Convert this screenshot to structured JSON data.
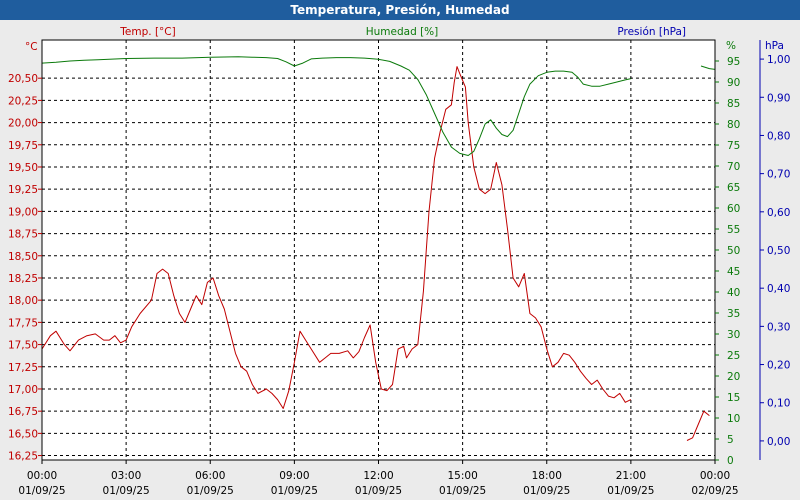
{
  "window": {
    "title": "Temperatura, Presión, Humedad"
  },
  "colors": {
    "temp": "#c00000",
    "humidity": "#0b7a0b",
    "pressure": "#0000b0",
    "grid": "#000000",
    "plot_bg": "#ffffff",
    "frame_bg": "#ebebeb",
    "title_bg": "#1f5d9e"
  },
  "chart_data": {
    "type": "line",
    "title": "Temperatura, Presión, Humedad",
    "grid": true,
    "x_tick_labels": [
      [
        "00:00",
        "01/09/25"
      ],
      [
        "03:00",
        "01/09/25"
      ],
      [
        "06:00",
        "01/09/25"
      ],
      [
        "09:00",
        "01/09/25"
      ],
      [
        "12:00",
        "01/09/25"
      ],
      [
        "15:00",
        "01/09/25"
      ],
      [
        "18:00",
        "01/09/25"
      ],
      [
        "21:00",
        "01/09/25"
      ],
      [
        "00:00",
        "02/09/25"
      ]
    ],
    "xlim": [
      0,
      24
    ],
    "axes": {
      "temp": {
        "label": "Temp. [°C]",
        "unit": "°C",
        "range": [
          16.2,
          20.93
        ],
        "ticks": [
          "16,25",
          "16,50",
          "16,75",
          "17,00",
          "17,25",
          "17,50",
          "17,75",
          "18,00",
          "18,25",
          "18,50",
          "18,75",
          "19,00",
          "19,25",
          "19,50",
          "19,75",
          "20,00",
          "20,25",
          "20,50"
        ]
      },
      "humidity": {
        "label": "Humedad [%]",
        "unit": "%",
        "range": [
          0,
          100
        ],
        "ticks": [
          "0",
          "5",
          "10",
          "15",
          "20",
          "25",
          "30",
          "35",
          "40",
          "45",
          "50",
          "55",
          "60",
          "65",
          "70",
          "75",
          "80",
          "85",
          "90",
          "95"
        ]
      },
      "pressure": {
        "label": "Presión [hPa]",
        "unit": "hPa",
        "range": [
          -0.05,
          1.05
        ],
        "ticks": [
          "0,00",
          "0,10",
          "0,20",
          "0,30",
          "0,40",
          "0,50",
          "0,60",
          "0,70",
          "0,80",
          "0,90",
          "1,00"
        ]
      }
    },
    "series": [
      {
        "name": "Temp. [°C]",
        "axis": "temp",
        "segments": [
          [
            [
              0,
              17.45
            ],
            [
              0.3,
              17.6
            ],
            [
              0.5,
              17.65
            ],
            [
              0.8,
              17.5
            ],
            [
              1.0,
              17.43
            ],
            [
              1.3,
              17.55
            ],
            [
              1.6,
              17.6
            ],
            [
              1.9,
              17.62
            ],
            [
              2.2,
              17.55
            ],
            [
              2.4,
              17.55
            ],
            [
              2.6,
              17.6
            ],
            [
              2.8,
              17.52
            ],
            [
              3.0,
              17.55
            ],
            [
              3.2,
              17.7
            ],
            [
              3.5,
              17.85
            ],
            [
              3.9,
              18.0
            ],
            [
              4.1,
              18.3
            ],
            [
              4.3,
              18.35
            ],
            [
              4.5,
              18.3
            ],
            [
              4.7,
              18.05
            ],
            [
              4.9,
              17.85
            ],
            [
              5.1,
              17.75
            ],
            [
              5.3,
              17.9
            ],
            [
              5.5,
              18.05
            ],
            [
              5.7,
              17.95
            ],
            [
              5.9,
              18.2
            ],
            [
              6.1,
              18.25
            ],
            [
              6.3,
              18.05
            ],
            [
              6.5,
              17.9
            ],
            [
              6.7,
              17.65
            ],
            [
              6.9,
              17.4
            ],
            [
              7.1,
              17.25
            ],
            [
              7.3,
              17.2
            ],
            [
              7.5,
              17.05
            ],
            [
              7.7,
              16.95
            ],
            [
              8.0,
              17.0
            ],
            [
              8.2,
              16.95
            ],
            [
              8.4,
              16.88
            ],
            [
              8.6,
              16.78
            ],
            [
              8.8,
              16.98
            ],
            [
              9.0,
              17.3
            ],
            [
              9.2,
              17.65
            ],
            [
              9.4,
              17.55
            ],
            [
              9.6,
              17.45
            ],
            [
              9.9,
              17.3
            ],
            [
              10.1,
              17.35
            ],
            [
              10.3,
              17.4
            ],
            [
              10.6,
              17.4
            ],
            [
              10.9,
              17.43
            ],
            [
              11.1,
              17.35
            ],
            [
              11.3,
              17.42
            ],
            [
              11.5,
              17.58
            ],
            [
              11.7,
              17.72
            ],
            [
              11.9,
              17.3
            ],
            [
              12.1,
              17.0
            ],
            [
              12.3,
              16.98
            ],
            [
              12.5,
              17.05
            ],
            [
              12.7,
              17.45
            ],
            [
              12.9,
              17.48
            ],
            [
              13.0,
              17.35
            ],
            [
              13.2,
              17.45
            ],
            [
              13.4,
              17.5
            ],
            [
              13.6,
              18.1
            ],
            [
              13.8,
              19.0
            ],
            [
              14.0,
              19.6
            ],
            [
              14.2,
              19.9
            ],
            [
              14.4,
              20.15
            ],
            [
              14.6,
              20.2
            ],
            [
              14.7,
              20.45
            ],
            [
              14.8,
              20.63
            ],
            [
              14.9,
              20.55
            ],
            [
              15.1,
              20.4
            ],
            [
              15.2,
              20.0
            ],
            [
              15.4,
              19.5
            ],
            [
              15.6,
              19.25
            ],
            [
              15.8,
              19.2
            ],
            [
              16.0,
              19.25
            ],
            [
              16.2,
              19.55
            ],
            [
              16.4,
              19.3
            ],
            [
              16.6,
              18.8
            ],
            [
              16.8,
              18.25
            ],
            [
              17.0,
              18.15
            ],
            [
              17.2,
              18.3
            ],
            [
              17.4,
              17.85
            ],
            [
              17.6,
              17.8
            ],
            [
              17.8,
              17.7
            ],
            [
              18.0,
              17.45
            ],
            [
              18.2,
              17.25
            ],
            [
              18.4,
              17.3
            ],
            [
              18.6,
              17.4
            ],
            [
              18.8,
              17.38
            ],
            [
              19.0,
              17.3
            ],
            [
              19.2,
              17.2
            ],
            [
              19.4,
              17.12
            ],
            [
              19.6,
              17.05
            ],
            [
              19.8,
              17.1
            ],
            [
              20.0,
              17.0
            ],
            [
              20.2,
              16.92
            ],
            [
              20.4,
              16.9
            ],
            [
              20.6,
              16.95
            ],
            [
              20.8,
              16.85
            ],
            [
              21.0,
              16.88
            ]
          ],
          [
            [
              23.0,
              16.42
            ],
            [
              23.2,
              16.45
            ],
            [
              23.4,
              16.6
            ],
            [
              23.6,
              16.75
            ],
            [
              23.8,
              16.7
            ]
          ]
        ]
      },
      {
        "name": "Humedad [%]",
        "axis": "humidity",
        "segments": [
          [
            [
              0,
              94.5
            ],
            [
              0.5,
              94.7
            ],
            [
              1.0,
              95.0
            ],
            [
              1.5,
              95.2
            ],
            [
              2.0,
              95.3
            ],
            [
              3.0,
              95.6
            ],
            [
              4.0,
              95.7
            ],
            [
              5.0,
              95.7
            ],
            [
              6.0,
              95.9
            ],
            [
              7.0,
              96.0
            ],
            [
              7.5,
              95.9
            ],
            [
              8.0,
              95.8
            ],
            [
              8.4,
              95.6
            ],
            [
              8.7,
              94.8
            ],
            [
              9.0,
              93.8
            ],
            [
              9.3,
              94.5
            ],
            [
              9.6,
              95.5
            ],
            [
              10.0,
              95.7
            ],
            [
              10.5,
              95.8
            ],
            [
              11.0,
              95.8
            ],
            [
              11.5,
              95.7
            ],
            [
              12.0,
              95.4
            ],
            [
              12.4,
              94.9
            ],
            [
              12.8,
              93.8
            ],
            [
              13.1,
              92.8
            ],
            [
              13.4,
              90.6
            ],
            [
              13.7,
              87.0
            ],
            [
              14.0,
              82.5
            ],
            [
              14.3,
              78.0
            ],
            [
              14.6,
              74.5
            ],
            [
              14.9,
              73.0
            ],
            [
              15.2,
              72.5
            ],
            [
              15.4,
              73.5
            ],
            [
              15.6,
              76.5
            ],
            [
              15.8,
              80.0
            ],
            [
              16.0,
              81.0
            ],
            [
              16.2,
              79.0
            ],
            [
              16.4,
              77.5
            ],
            [
              16.6,
              77.0
            ],
            [
              16.8,
              78.5
            ],
            [
              17.0,
              82.5
            ],
            [
              17.2,
              86.5
            ],
            [
              17.4,
              89.5
            ],
            [
              17.7,
              91.5
            ],
            [
              18.0,
              92.3
            ],
            [
              18.3,
              92.6
            ],
            [
              18.6,
              92.6
            ],
            [
              18.9,
              92.3
            ],
            [
              19.1,
              91.2
            ],
            [
              19.3,
              89.5
            ],
            [
              19.6,
              89.0
            ],
            [
              19.9,
              89.0
            ],
            [
              20.2,
              89.5
            ],
            [
              20.5,
              90.0
            ],
            [
              20.8,
              90.5
            ],
            [
              21.0,
              90.8
            ]
          ],
          [
            [
              23.5,
              93.8
            ],
            [
              23.8,
              93.2
            ],
            [
              24.0,
              93.0
            ]
          ]
        ]
      }
    ]
  }
}
